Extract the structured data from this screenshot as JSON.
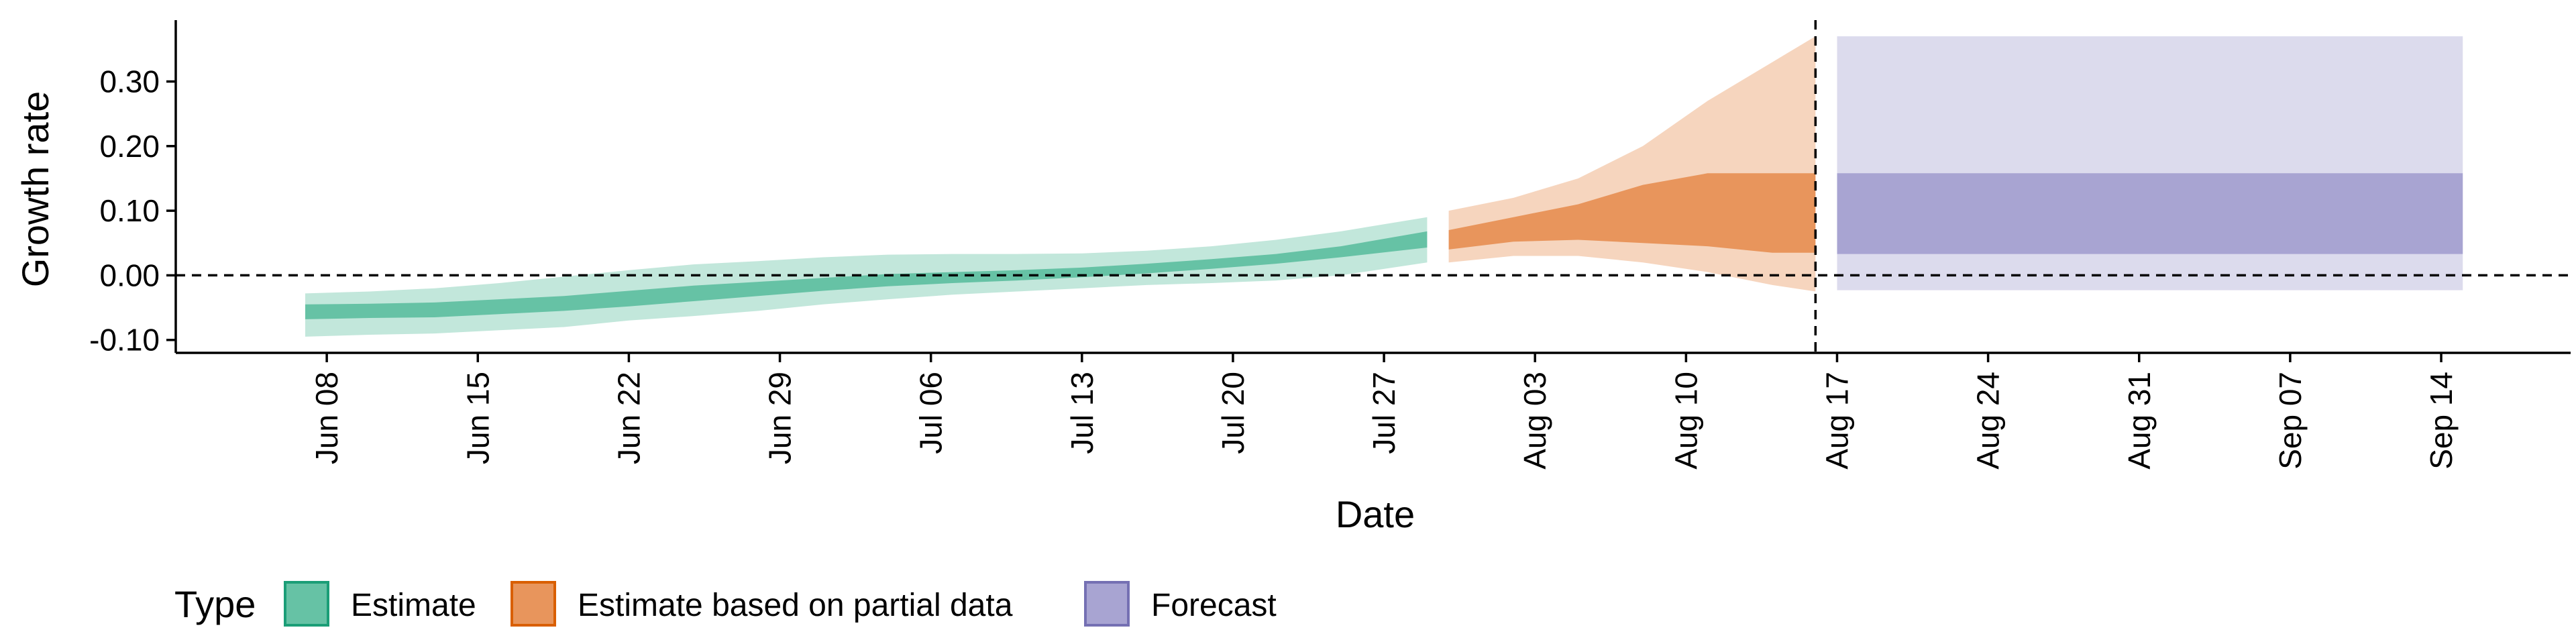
{
  "chart_data": {
    "type": "area",
    "xlabel": "Date",
    "ylabel": "Growth rate",
    "x_tick_labels": [
      "Jun 08",
      "Jun 15",
      "Jun 22",
      "Jun 29",
      "Jul 06",
      "Jul 13",
      "Jul 20",
      "Jul 27",
      "Aug 03",
      "Aug 10",
      "Aug 17",
      "Aug 24",
      "Aug 31",
      "Sep 07",
      "Sep 14"
    ],
    "x_tick_dates": [
      "2020-06-08",
      "2020-06-15",
      "2020-06-22",
      "2020-06-29",
      "2020-07-06",
      "2020-07-13",
      "2020-07-20",
      "2020-07-27",
      "2020-08-03",
      "2020-08-10",
      "2020-08-17",
      "2020-08-24",
      "2020-08-31",
      "2020-09-07",
      "2020-09-14"
    ],
    "y_ticks": [
      -0.1,
      0.0,
      0.1,
      0.2,
      0.3
    ],
    "y_tick_labels": [
      "-0.10",
      "0.00",
      "0.10",
      "0.20",
      "0.30"
    ],
    "xlim": [
      "2020-06-01",
      "2020-09-20"
    ],
    "ylim": [
      -0.12,
      0.395
    ],
    "reference_lines": {
      "horizontal_y": 0.0,
      "vertical_x": "2020-08-16"
    },
    "legend": {
      "title": "Type",
      "position": "bottom",
      "entries": [
        {
          "label": "Estimate",
          "fill": "#66c2a5",
          "border": "#1b9e77"
        },
        {
          "label": "Estimate based on partial data",
          "fill": "#e8955c",
          "border": "#d95f02"
        },
        {
          "label": "Forecast",
          "fill": "#a8a4d2",
          "border": "#7570b3"
        }
      ]
    },
    "series": [
      {
        "name": "Estimate",
        "color": "#66c2a5",
        "x": [
          "2020-06-07",
          "2020-06-10",
          "2020-06-13",
          "2020-06-16",
          "2020-06-19",
          "2020-06-22",
          "2020-06-25",
          "2020-06-28",
          "2020-07-01",
          "2020-07-04",
          "2020-07-07",
          "2020-07-10",
          "2020-07-13",
          "2020-07-16",
          "2020-07-19",
          "2020-07-22",
          "2020-07-25",
          "2020-07-29"
        ],
        "outer_lower": [
          -0.095,
          -0.092,
          -0.09,
          -0.085,
          -0.08,
          -0.07,
          -0.063,
          -0.055,
          -0.045,
          -0.037,
          -0.03,
          -0.025,
          -0.02,
          -0.015,
          -0.012,
          -0.008,
          0.0,
          0.02
        ],
        "outer_upper": [
          -0.028,
          -0.025,
          -0.02,
          -0.012,
          -0.002,
          0.008,
          0.017,
          0.022,
          0.028,
          0.032,
          0.033,
          0.033,
          0.034,
          0.038,
          0.045,
          0.055,
          0.068,
          0.09
        ],
        "inner_lower": [
          -0.068,
          -0.066,
          -0.065,
          -0.06,
          -0.055,
          -0.048,
          -0.04,
          -0.032,
          -0.024,
          -0.017,
          -0.012,
          -0.008,
          -0.003,
          0.003,
          0.01,
          0.018,
          0.028,
          0.043
        ],
        "inner_upper": [
          -0.045,
          -0.044,
          -0.042,
          -0.037,
          -0.032,
          -0.024,
          -0.016,
          -0.01,
          -0.004,
          0.002,
          0.005,
          0.008,
          0.012,
          0.018,
          0.025,
          0.033,
          0.045,
          0.068
        ]
      },
      {
        "name": "Estimate based on partial data",
        "color": "#e8955c",
        "x": [
          "2020-07-30",
          "2020-08-02",
          "2020-08-05",
          "2020-08-08",
          "2020-08-11",
          "2020-08-14",
          "2020-08-16"
        ],
        "outer_lower": [
          0.02,
          0.03,
          0.03,
          0.02,
          0.005,
          -0.015,
          -0.025
        ],
        "outer_upper": [
          0.1,
          0.12,
          0.15,
          0.2,
          0.27,
          0.33,
          0.37
        ],
        "inner_lower": [
          0.04,
          0.052,
          0.055,
          0.05,
          0.045,
          0.035,
          0.035
        ],
        "inner_upper": [
          0.07,
          0.09,
          0.11,
          0.14,
          0.158,
          0.158,
          0.158
        ]
      },
      {
        "name": "Forecast",
        "color": "#a8a4d2",
        "x": [
          "2020-08-17",
          "2020-09-15"
        ],
        "outer_lower": [
          -0.023,
          -0.023
        ],
        "outer_upper": [
          0.37,
          0.37
        ],
        "inner_lower": [
          0.033,
          0.033
        ],
        "inner_upper": [
          0.158,
          0.158
        ]
      }
    ]
  }
}
